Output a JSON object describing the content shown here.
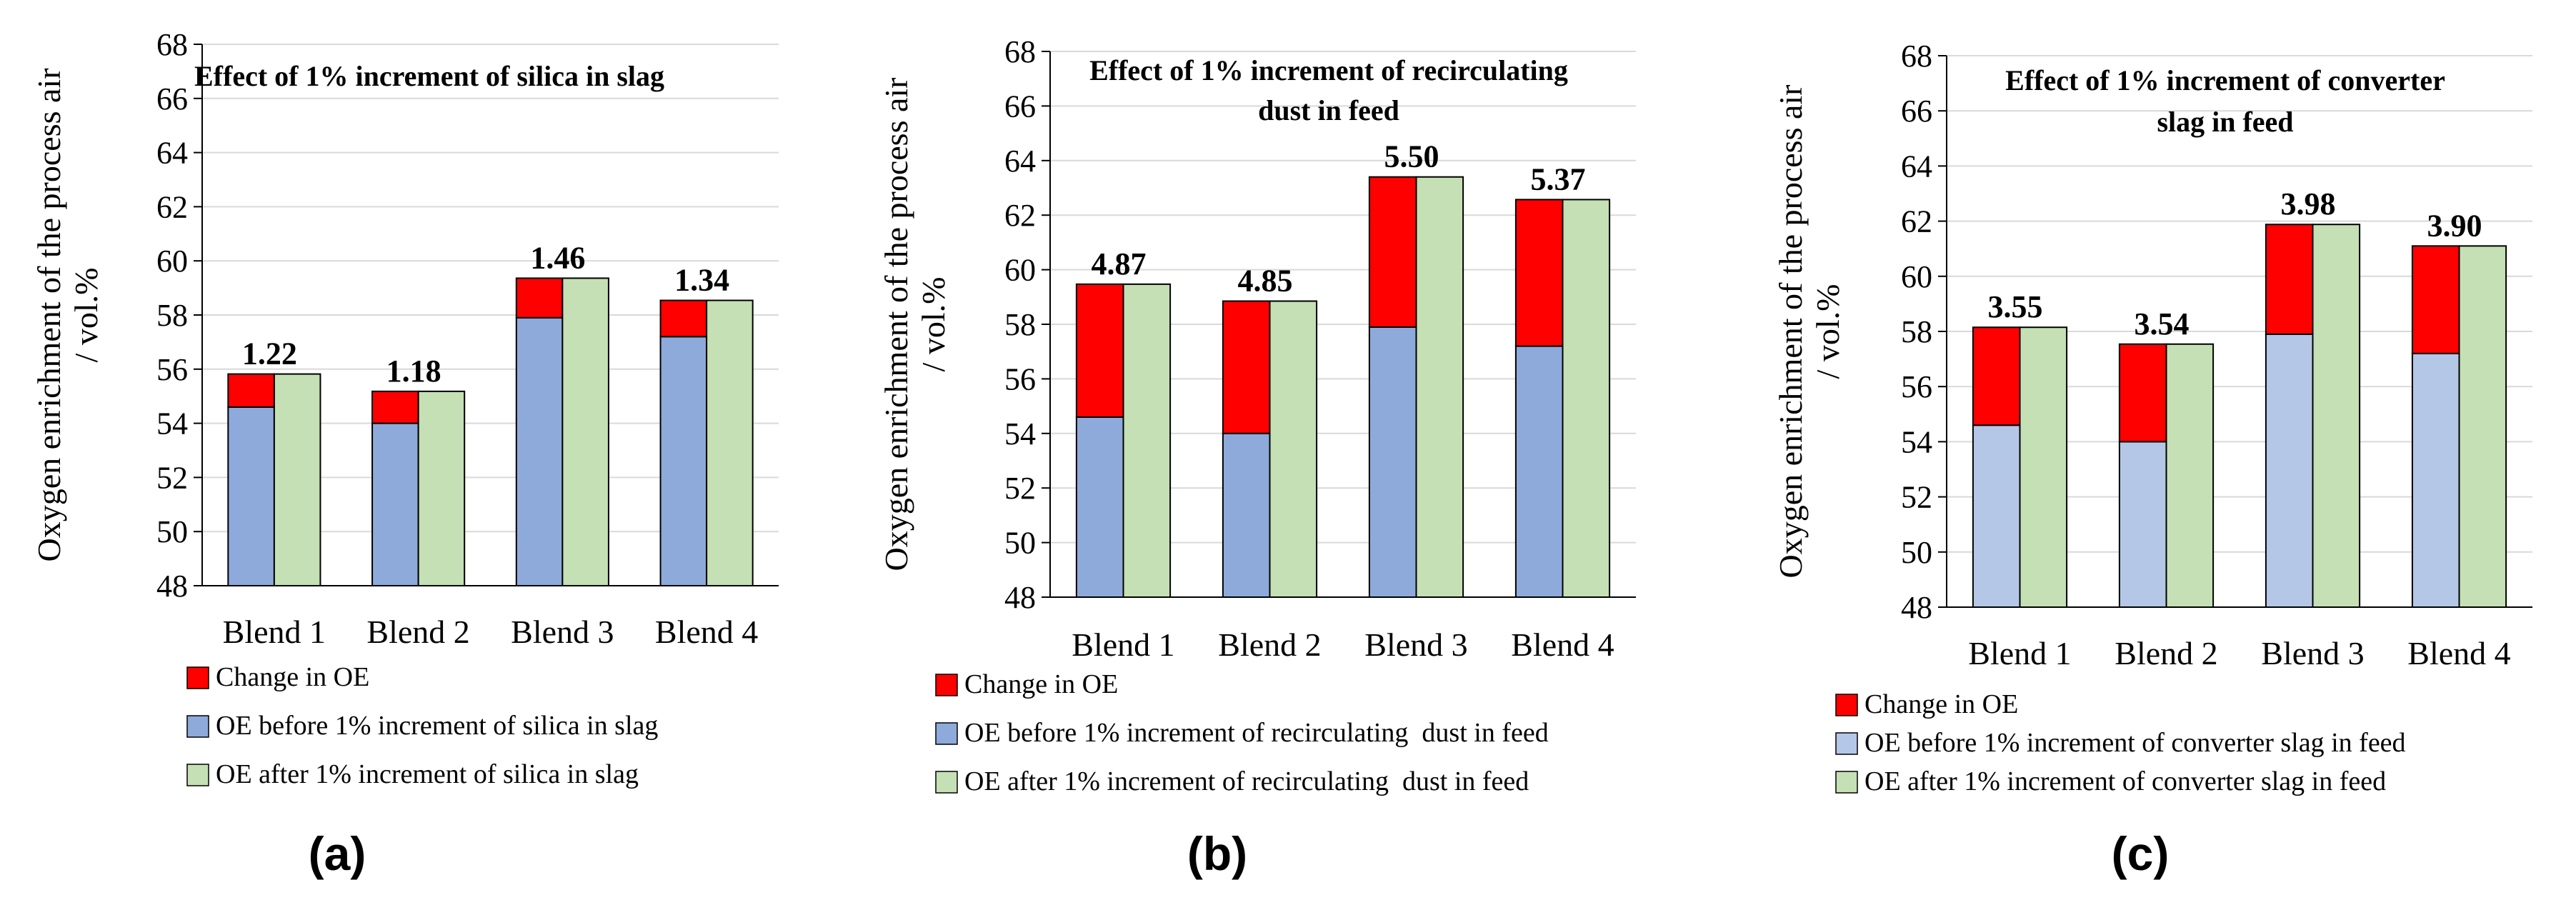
{
  "colors": {
    "change": "#ff0000",
    "before_a": "#8eaadb",
    "before_b": "#8eaadb",
    "before_c": "#b4c7e7",
    "after": "#c5e0b4",
    "grid": "#d9d9d9"
  },
  "chart_data": [
    {
      "type": "bar",
      "panel_label": "(a)",
      "title_lines": [
        "Effect of 1% increment of silica in slag"
      ],
      "ylabel_lines": [
        "Oxygen enrichment of the process air",
        "/ vol.%"
      ],
      "xlabel": "",
      "ylim": [
        48,
        68
      ],
      "yticks": [
        "48",
        "50",
        "52",
        "54",
        "56",
        "58",
        "60",
        "62",
        "64",
        "66",
        "68"
      ],
      "categories": [
        "Blend 1",
        "Blend 2",
        "Blend 3",
        "Blend 4"
      ],
      "series": [
        {
          "name": "OE before 1% increment of silica in slag",
          "values": [
            54.6,
            54.0,
            57.9,
            57.2
          ]
        },
        {
          "name": "Change in OE",
          "values": [
            1.22,
            1.18,
            1.46,
            1.34
          ]
        },
        {
          "name": "OE after 1% increment of silica in slag",
          "values": [
            55.82,
            55.18,
            59.36,
            58.54
          ]
        }
      ],
      "data_labels": [
        "1.22",
        "1.18",
        "1.46",
        "1.34"
      ],
      "legend": [
        "Change in OE",
        "OE before 1% increment of silica in slag",
        "OE after 1% increment of silica in slag"
      ],
      "legend_position": "bottom"
    },
    {
      "type": "bar",
      "panel_label": "(b)",
      "title_lines": [
        "Effect of 1% increment of recirculating",
        "dust in feed"
      ],
      "ylabel_lines": [
        "Oxygen enrichment of the process air",
        "/ vol.%"
      ],
      "xlabel": "",
      "ylim": [
        48,
        68
      ],
      "yticks": [
        "48",
        "50",
        "52",
        "54",
        "56",
        "58",
        "60",
        "62",
        "64",
        "66",
        "68"
      ],
      "categories": [
        "Blend 1",
        "Blend 2",
        "Blend 3",
        "Blend 4"
      ],
      "series": [
        {
          "name": "OE before 1% increment of recirculating  dust in feed",
          "values": [
            54.6,
            54.0,
            57.9,
            57.2
          ]
        },
        {
          "name": "Change in OE",
          "values": [
            4.87,
            4.85,
            5.5,
            5.37
          ]
        },
        {
          "name": "OE after 1% increment of recirculating  dust in feed",
          "values": [
            59.47,
            58.85,
            63.4,
            62.57
          ]
        }
      ],
      "data_labels": [
        "4.87",
        "4.85",
        "5.50",
        "5.37"
      ],
      "legend": [
        "Change in OE",
        "OE before 1% increment of recirculating  dust in feed",
        "OE after 1% increment of recirculating  dust in feed"
      ],
      "legend_position": "bottom"
    },
    {
      "type": "bar",
      "panel_label": "(c)",
      "title_lines": [
        "Effect of 1% increment of converter",
        "slag in feed"
      ],
      "ylabel_lines": [
        "Oxygen enrichment of the process air",
        "/ vol.%"
      ],
      "xlabel": "",
      "ylim": [
        48,
        68
      ],
      "yticks": [
        "48",
        "50",
        "52",
        "54",
        "56",
        "58",
        "60",
        "62",
        "64",
        "66",
        "68"
      ],
      "categories": [
        "Blend 1",
        "Blend 2",
        "Blend 3",
        "Blend 4"
      ],
      "series": [
        {
          "name": "OE before 1% increment of converter slag in feed",
          "values": [
            54.6,
            54.0,
            57.9,
            57.2
          ]
        },
        {
          "name": "Change in OE",
          "values": [
            3.55,
            3.54,
            3.98,
            3.9
          ]
        },
        {
          "name": "OE after 1% increment of converter slag in feed",
          "values": [
            58.15,
            57.54,
            61.88,
            61.1
          ]
        }
      ],
      "data_labels": [
        "3.55",
        "3.54",
        "3.98",
        "3.90"
      ],
      "legend": [
        "Change in OE",
        "OE before 1% increment of converter slag in feed",
        "OE after 1% increment of converter slag in feed"
      ],
      "legend_position": "bottom"
    }
  ]
}
